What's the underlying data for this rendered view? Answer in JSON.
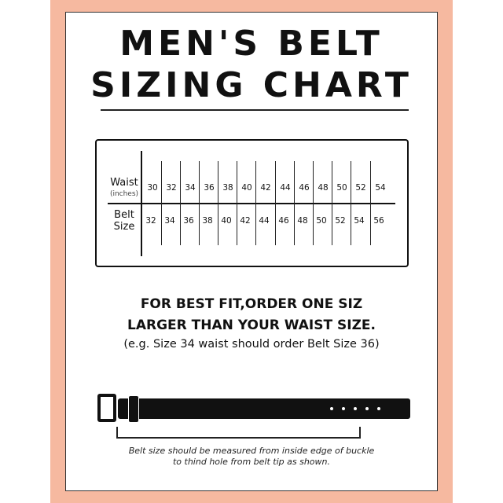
{
  "title_line1": "MEN'S BELT",
  "title_line2": "SIZING CHART",
  "table": {
    "row1_label": "Waist",
    "row1_sublabel": "(inches)",
    "row2_label_line1": "Belt",
    "row2_label_line2": "Size",
    "waist": [
      "30",
      "32",
      "34",
      "36",
      "38",
      "40",
      "42",
      "44",
      "46",
      "48",
      "50",
      "52",
      "54"
    ],
    "belt": [
      "32",
      "34",
      "36",
      "38",
      "40",
      "42",
      "44",
      "46",
      "48",
      "50",
      "52",
      "54",
      "56"
    ]
  },
  "advice": {
    "line1": "FOR BEST FIT,ORDER ONE SIZ",
    "line2": "LARGER THAN YOUR WAIST SIZE.",
    "line3": "(e.g. Size 34 waist should order Belt Size 36)"
  },
  "caption": {
    "line1": "Belt size should be measured from inside edge of buckle",
    "line2": "to thind hole from belt tip as shown."
  },
  "colors": {
    "border_background": "#f6b9a0",
    "panel": "#ffffff",
    "ink": "#111111"
  }
}
